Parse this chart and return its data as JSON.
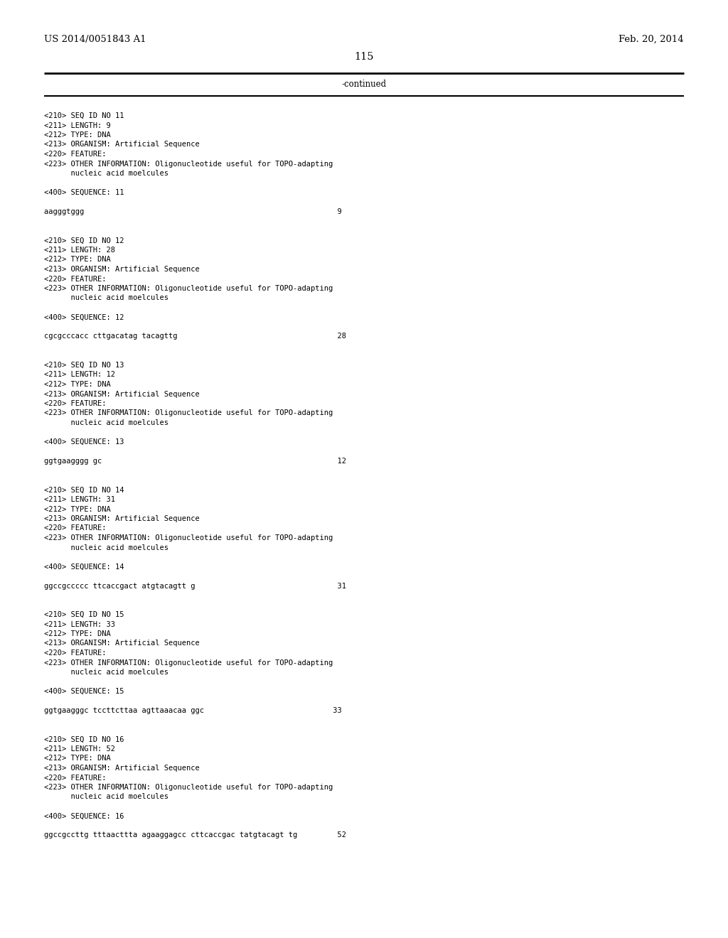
{
  "background_color": "#ffffff",
  "header_left": "US 2014/0051843 A1",
  "header_right": "Feb. 20, 2014",
  "page_number": "115",
  "continued_label": "-continued",
  "line_color": "#000000",
  "font_size_header": 9.5,
  "font_size_body": 7.5,
  "font_size_page": 10.5,
  "font_size_continued": 8.5,
  "body_lines": [
    "<210> SEQ ID NO 11",
    "<211> LENGTH: 9",
    "<212> TYPE: DNA",
    "<213> ORGANISM: Artificial Sequence",
    "<220> FEATURE:",
    "<223> OTHER INFORMATION: Oligonucleotide useful for TOPO-adapting",
    "      nucleic acid moelcules",
    "",
    "<400> SEQUENCE: 11",
    "",
    "aagggtggg                                                         9",
    "",
    "",
    "<210> SEQ ID NO 12",
    "<211> LENGTH: 28",
    "<212> TYPE: DNA",
    "<213> ORGANISM: Artificial Sequence",
    "<220> FEATURE:",
    "<223> OTHER INFORMATION: Oligonucleotide useful for TOPO-adapting",
    "      nucleic acid moelcules",
    "",
    "<400> SEQUENCE: 12",
    "",
    "cgcgcccacc cttgacatag tacagttg                                    28",
    "",
    "",
    "<210> SEQ ID NO 13",
    "<211> LENGTH: 12",
    "<212> TYPE: DNA",
    "<213> ORGANISM: Artificial Sequence",
    "<220> FEATURE:",
    "<223> OTHER INFORMATION: Oligonucleotide useful for TOPO-adapting",
    "      nucleic acid moelcules",
    "",
    "<400> SEQUENCE: 13",
    "",
    "ggtgaagggg gc                                                     12",
    "",
    "",
    "<210> SEQ ID NO 14",
    "<211> LENGTH: 31",
    "<212> TYPE: DNA",
    "<213> ORGANISM: Artificial Sequence",
    "<220> FEATURE:",
    "<223> OTHER INFORMATION: Oligonucleotide useful for TOPO-adapting",
    "      nucleic acid moelcules",
    "",
    "<400> SEQUENCE: 14",
    "",
    "ggccgccccc ttcaccgact atgtacagtt g                                31",
    "",
    "",
    "<210> SEQ ID NO 15",
    "<211> LENGTH: 33",
    "<212> TYPE: DNA",
    "<213> ORGANISM: Artificial Sequence",
    "<220> FEATURE:",
    "<223> OTHER INFORMATION: Oligonucleotide useful for TOPO-adapting",
    "      nucleic acid moelcules",
    "",
    "<400> SEQUENCE: 15",
    "",
    "ggtgaagggc tccttcttaa agttaaacaa ggc                             33",
    "",
    "",
    "<210> SEQ ID NO 16",
    "<211> LENGTH: 52",
    "<212> TYPE: DNA",
    "<213> ORGANISM: Artificial Sequence",
    "<220> FEATURE:",
    "<223> OTHER INFORMATION: Oligonucleotide useful for TOPO-adapting",
    "      nucleic acid moelcules",
    "",
    "<400> SEQUENCE: 16",
    "",
    "ggccgccttg tttaacttta agaaggagcc cttcaccgac tatgtacagt tg         52"
  ]
}
